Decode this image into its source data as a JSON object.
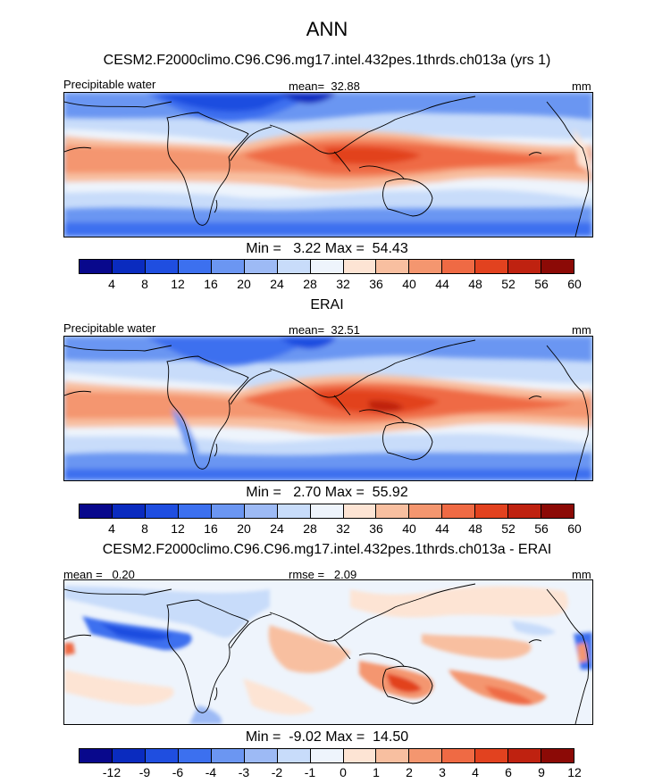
{
  "title": "ANN",
  "panel_top": {
    "subtitle": "CESM2.F2000climo.C96.C96.mg17.intel.432pes.1thrds.ch013a (yrs 1)",
    "left_label": "Precipitable water",
    "center_label": "mean=  32.88",
    "units": "mm",
    "minmax": "Min =   3.22 Max =  54.43"
  },
  "panel_mid": {
    "subtitle": "ERAI",
    "left_label": "Precipitable water",
    "center_label": "mean=  32.51",
    "units": "mm",
    "minmax": "Min =   2.70 Max =  55.92"
  },
  "panel_diff": {
    "subtitle": "CESM2.F2000climo.C96.C96.mg17.intel.432pes.1thrds.ch013a - ERAI",
    "left_label": "mean =   0.20",
    "center_label": "rmse =   2.09",
    "units": "mm",
    "minmax": "Min =  -9.02 Max =  14.50"
  },
  "colorbar_main": {
    "colors": [
      "#08088c",
      "#0a2bbf",
      "#1f4ee0",
      "#3c70ef",
      "#6b96f2",
      "#9dbaf5",
      "#c8dcfa",
      "#eef4fc",
      "#fde4d4",
      "#f8bfa0",
      "#f4966f",
      "#ef6a44",
      "#e2421f",
      "#bf2210",
      "#8c0a06"
    ],
    "ticks": [
      "4",
      "8",
      "12",
      "16",
      "20",
      "24",
      "28",
      "32",
      "36",
      "40",
      "44",
      "48",
      "52",
      "56",
      "60"
    ]
  },
  "colorbar_diff": {
    "colors": [
      "#08088c",
      "#0a2bbf",
      "#1f4ee0",
      "#3c70ef",
      "#6b96f2",
      "#9dbaf5",
      "#c8dcfa",
      "#eef4fc",
      "#fde4d4",
      "#f8bfa0",
      "#f4966f",
      "#ef6a44",
      "#e2421f",
      "#bf2210",
      "#8c0a06"
    ],
    "ticks": [
      "-12",
      "-9",
      "-6",
      "-4",
      "-3",
      "-2",
      "-1",
      "0",
      "1",
      "2",
      "3",
      "4",
      "6",
      "9",
      "12"
    ]
  }
}
